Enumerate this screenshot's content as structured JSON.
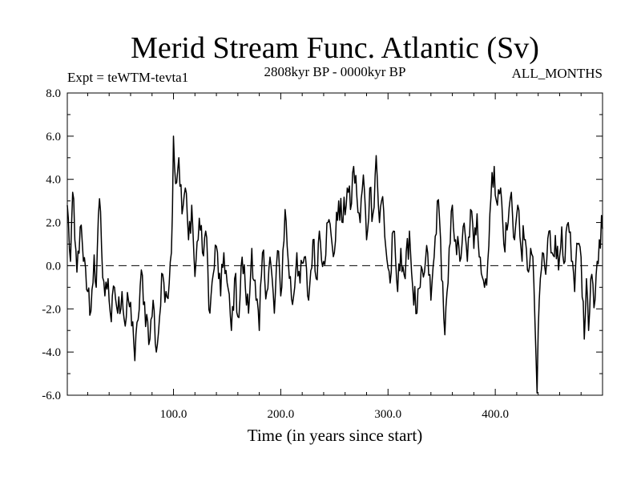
{
  "chart_data": {
    "type": "line",
    "title": "Merid Stream Func. Atlantic (Sv)",
    "subtitle_left": "Expt = teWTM-tevta1",
    "subtitle_center": "2808kyr BP - 0000kyr BP",
    "subtitle_right": "ALL_MONTHS",
    "xlabel": "Time (in years since start)",
    "ylabel": "",
    "xlim": [
      1,
      500
    ],
    "ylim": [
      -6.0,
      8.0
    ],
    "xticks": [
      100,
      200,
      300,
      400
    ],
    "xtick_labels": [
      "100.0",
      "200.0",
      "300.0",
      "400.0"
    ],
    "yticks": [
      -6,
      -4,
      -2,
      0,
      2,
      4,
      6,
      8
    ],
    "ytick_labels": [
      "-6.0",
      "-4.0",
      "-2.0",
      "0.0",
      "2.0",
      "4.0",
      "6.0",
      "8.0"
    ],
    "zero_line": 0,
    "series": [
      {
        "name": "Merid Stream Func. Atlantic",
        "anchors": [
          [
            1,
            2.8
          ],
          [
            4,
            0.2
          ],
          [
            6,
            3.4
          ],
          [
            8,
            1.2
          ],
          [
            10,
            -0.3
          ],
          [
            13,
            1.8
          ],
          [
            16,
            0.2
          ],
          [
            20,
            -1.2
          ],
          [
            23,
            -2.1
          ],
          [
            26,
            0.5
          ],
          [
            28,
            -1.0
          ],
          [
            31,
            3.1
          ],
          [
            33,
            0.8
          ],
          [
            36,
            -1.4
          ],
          [
            39,
            -0.6
          ],
          [
            42,
            -2.6
          ],
          [
            45,
            -1.0
          ],
          [
            48,
            -2.2
          ],
          [
            52,
            -1.2
          ],
          [
            55,
            -2.8
          ],
          [
            58,
            -1.6
          ],
          [
            62,
            -2.6
          ],
          [
            64,
            -4.4
          ],
          [
            67,
            -2.5
          ],
          [
            70,
            -0.2
          ],
          [
            72,
            -1.8
          ],
          [
            76,
            -2.6
          ],
          [
            78,
            -3.4
          ],
          [
            81,
            -1.6
          ],
          [
            84,
            -4.0
          ],
          [
            87,
            -2.4
          ],
          [
            90,
            -0.4
          ],
          [
            93,
            -1.2
          ],
          [
            96,
            -0.8
          ],
          [
            98,
            0.6
          ],
          [
            100,
            6.0
          ],
          [
            102,
            3.8
          ],
          [
            105,
            5.0
          ],
          [
            108,
            2.4
          ],
          [
            111,
            3.6
          ],
          [
            114,
            1.2
          ],
          [
            117,
            2.8
          ],
          [
            120,
            -0.5
          ],
          [
            124,
            2.2
          ],
          [
            127,
            0.6
          ],
          [
            130,
            1.6
          ],
          [
            134,
            -2.2
          ],
          [
            137,
            -0.4
          ],
          [
            140,
            0.9
          ],
          [
            144,
            -1.4
          ],
          [
            147,
            0.6
          ],
          [
            150,
            -0.8
          ],
          [
            154,
            -3.0
          ],
          [
            157,
            -0.6
          ],
          [
            161,
            -2.4
          ],
          [
            164,
            0.4
          ],
          [
            167,
            -1.0
          ],
          [
            170,
            -2.2
          ],
          [
            173,
            0.8
          ],
          [
            177,
            -1.6
          ],
          [
            180,
            -3.0
          ],
          [
            183,
            0.6
          ],
          [
            187,
            -1.2
          ],
          [
            190,
            0.4
          ],
          [
            194,
            -2.2
          ],
          [
            197,
            0.7
          ],
          [
            200,
            -1.4
          ],
          [
            204,
            2.6
          ],
          [
            207,
            0.2
          ],
          [
            211,
            -1.8
          ],
          [
            215,
            0.6
          ],
          [
            218,
            -0.8
          ],
          [
            222,
            0.4
          ],
          [
            226,
            -1.6
          ],
          [
            230,
            1.2
          ],
          [
            233,
            -0.6
          ],
          [
            236,
            1.6
          ],
          [
            240,
            0.2
          ],
          [
            244,
            2.0
          ],
          [
            247,
            1.4
          ],
          [
            250,
            0.6
          ],
          [
            254,
            3.0
          ],
          [
            258,
            2.0
          ],
          [
            262,
            3.6
          ],
          [
            265,
            2.6
          ],
          [
            268,
            4.6
          ],
          [
            271,
            3.2
          ],
          [
            274,
            2.0
          ],
          [
            277,
            4.2
          ],
          [
            280,
            1.2
          ],
          [
            283,
            3.6
          ],
          [
            286,
            2.4
          ],
          [
            289,
            5.1
          ],
          [
            292,
            2.0
          ],
          [
            295,
            3.2
          ],
          [
            298,
            0.8
          ],
          [
            302,
            -0.8
          ],
          [
            305,
            1.6
          ],
          [
            309,
            -1.2
          ],
          [
            312,
            0.8
          ],
          [
            316,
            -0.6
          ],
          [
            320,
            1.6
          ],
          [
            323,
            -1.0
          ],
          [
            327,
            -2.2
          ],
          [
            330,
            -1.0
          ],
          [
            334,
            -0.3
          ],
          [
            337,
            0.6
          ],
          [
            340,
            -1.6
          ],
          [
            343,
            0.4
          ],
          [
            346,
            3.0
          ],
          [
            349,
            1.2
          ],
          [
            353,
            -3.2
          ],
          [
            356,
            -0.8
          ],
          [
            360,
            2.8
          ],
          [
            363,
            1.2
          ],
          [
            367,
            0.2
          ],
          [
            370,
            1.8
          ],
          [
            374,
            0.2
          ],
          [
            377,
            2.6
          ],
          [
            380,
            0.8
          ],
          [
            383,
            2.4
          ],
          [
            386,
            0.4
          ],
          [
            390,
            -1.0
          ],
          [
            393,
            0.2
          ],
          [
            396,
            3.2
          ],
          [
            399,
            4.6
          ],
          [
            402,
            2.8
          ],
          [
            405,
            3.6
          ],
          [
            408,
            1.0
          ],
          [
            412,
            2.0
          ],
          [
            415,
            3.4
          ],
          [
            418,
            1.2
          ],
          [
            421,
            2.8
          ],
          [
            424,
            0.8
          ],
          [
            427,
            1.2
          ],
          [
            430,
            -0.2
          ],
          [
            433,
            0.8
          ],
          [
            436,
            -0.8
          ],
          [
            439,
            -5.9
          ],
          [
            441,
            -1.6
          ],
          [
            444,
            0.6
          ],
          [
            447,
            -0.4
          ],
          [
            450,
            1.6
          ],
          [
            453,
            0.6
          ],
          [
            456,
            1.4
          ],
          [
            459,
            -0.2
          ],
          [
            462,
            1.8
          ],
          [
            465,
            0.2
          ],
          [
            468,
            2.0
          ],
          [
            471,
            0.2
          ],
          [
            474,
            -1.2
          ],
          [
            477,
            1.0
          ],
          [
            480,
            0.4
          ],
          [
            483,
            -3.4
          ],
          [
            485,
            -0.6
          ],
          [
            487,
            -3.0
          ],
          [
            490,
            -0.4
          ],
          [
            493,
            -1.6
          ],
          [
            495,
            0.2
          ],
          [
            497,
            1.2
          ],
          [
            500,
            1.7
          ]
        ]
      }
    ]
  }
}
